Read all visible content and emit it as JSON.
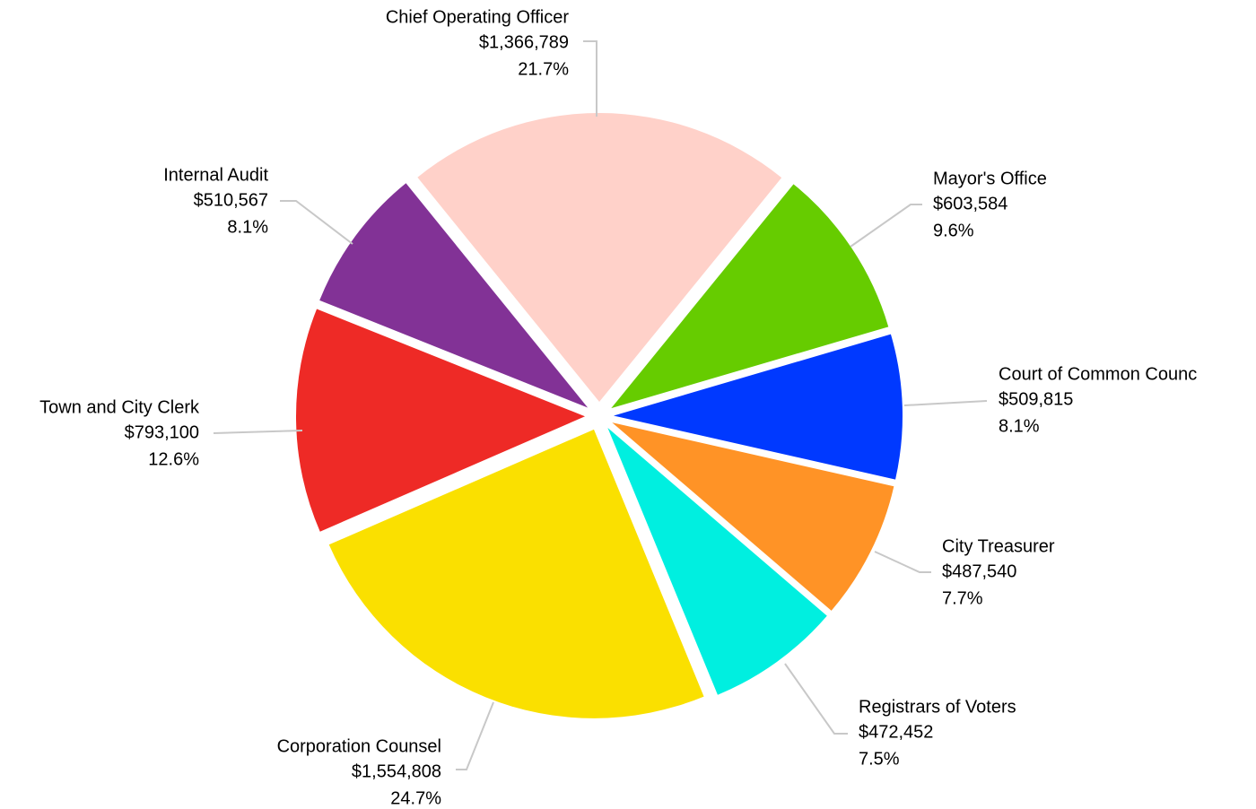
{
  "chart_data": {
    "type": "pie",
    "categories": [
      "Chief Operating Officer",
      "Mayor's Office",
      "Court of Common Counc",
      "City Treasurer",
      "Registrars of Voters",
      "Corporation Counsel",
      "Town and City Clerk",
      "Internal Audit"
    ],
    "values": [
      1366789,
      603584,
      509815,
      487540,
      472452,
      1554808,
      793100,
      510567
    ],
    "value_labels": [
      "$1,366,789",
      "$603,584",
      "$509,815",
      "$487,540",
      "$472,452",
      "$1,554,808",
      "$793,100",
      "$510,567"
    ],
    "percents": [
      21.7,
      9.6,
      8.1,
      7.7,
      7.5,
      24.7,
      12.6,
      8.1
    ],
    "percent_labels": [
      "21.7%",
      "9.6%",
      "8.1%",
      "7.7%",
      "7.5%",
      "24.7%",
      "12.6%",
      "8.1%"
    ],
    "colors": [
      "#ffd1c9",
      "#66cc00",
      "#0039ff",
      "#ff9326",
      "#00efe0",
      "#fae000",
      "#ee2a26",
      "#823296"
    ]
  }
}
